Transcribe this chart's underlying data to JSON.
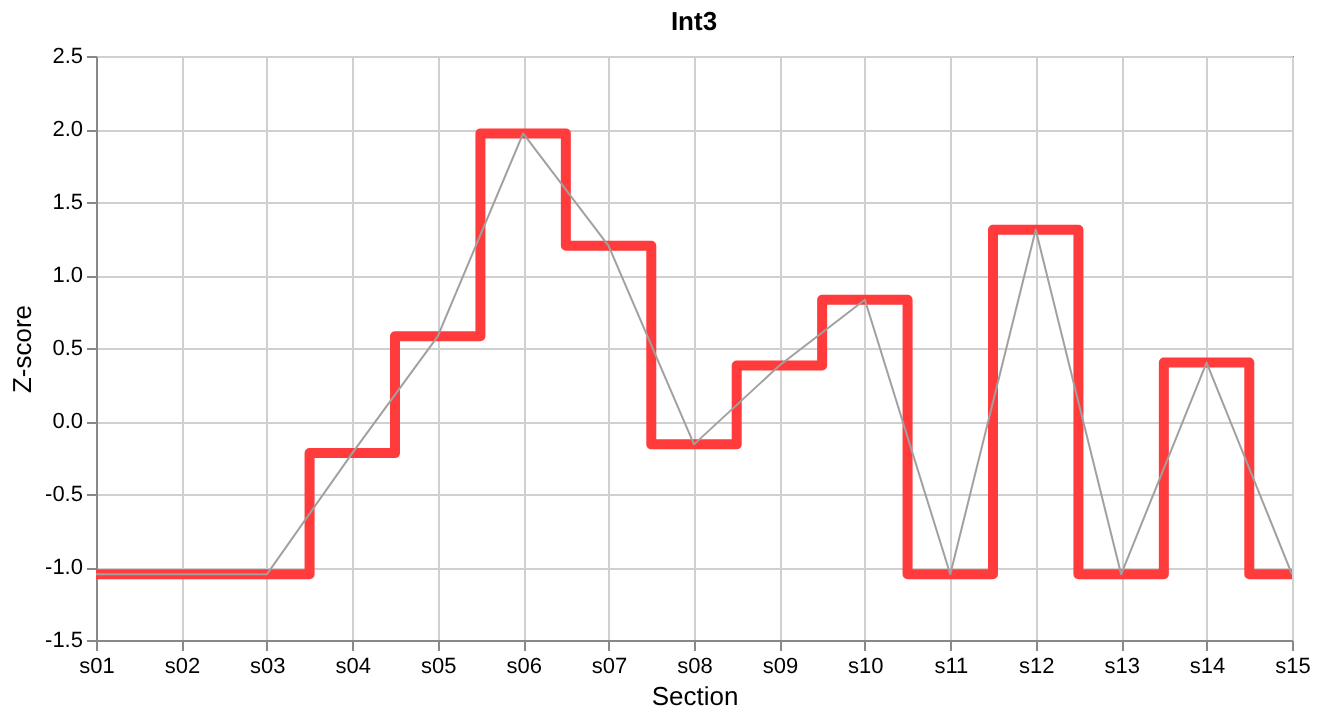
{
  "chart_data": {
    "type": "step",
    "title": "Int3",
    "xlabel": "Section",
    "ylabel": "Z-score",
    "categories": [
      "s01",
      "s02",
      "s03",
      "s04",
      "s05",
      "s06",
      "s07",
      "s08",
      "s09",
      "s10",
      "s11",
      "s12",
      "s13",
      "s14",
      "s15"
    ],
    "series": [
      {
        "color": "#ff3b3b",
        "values": [
          -1.05,
          -1.05,
          -1.05,
          -0.22,
          0.58,
          1.97,
          1.2,
          -0.16,
          0.38,
          0.83,
          -1.05,
          1.31,
          -1.05,
          0.4,
          -1.05
        ]
      },
      {
        "type": "line",
        "color": "#a0a0a0",
        "values": [
          -1.05,
          -1.05,
          -1.05,
          -0.22,
          0.58,
          1.97,
          1.2,
          -0.16,
          0.38,
          0.83,
          -1.05,
          1.31,
          -1.05,
          0.4,
          -1.05
        ]
      }
    ],
    "ylim": [
      -1.5,
      2.5
    ],
    "yticks": [
      {
        "value": -1.5,
        "label": "-1.5"
      },
      {
        "value": -1,
        "label": "-1.0"
      },
      {
        "value": -0.5,
        "label": "-0.5"
      },
      {
        "value": 0,
        "label": "0.0"
      },
      {
        "value": 0.5,
        "label": "0.5"
      },
      {
        "value": 1,
        "label": "1.0"
      },
      {
        "value": 1.5,
        "label": "1.5"
      },
      {
        "value": 2,
        "label": "2.0"
      },
      {
        "value": 2.5,
        "label": "2.5"
      }
    ],
    "grid": true,
    "legend": false
  }
}
